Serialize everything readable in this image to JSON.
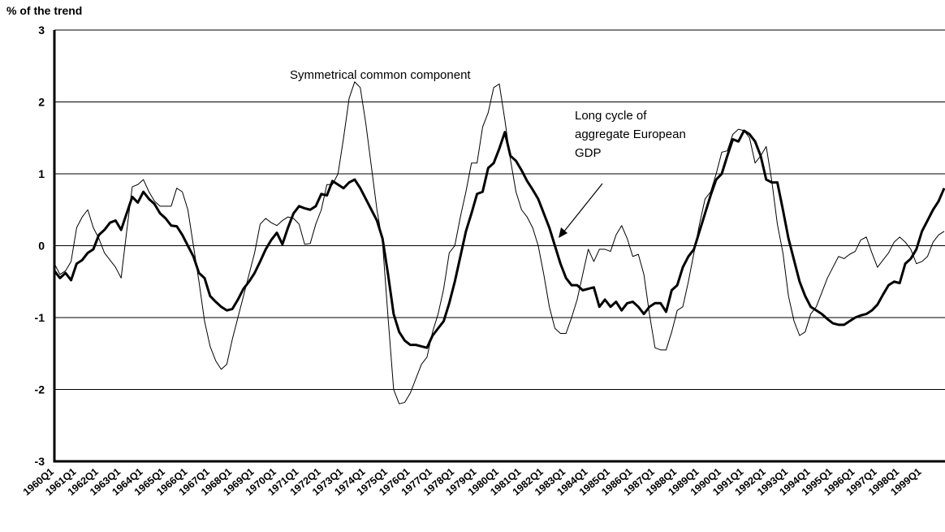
{
  "chart_data": {
    "type": "line",
    "ylabel": "% of the trend",
    "ylim": [
      -3,
      3
    ],
    "yticks": [
      -3,
      -2,
      -1,
      0,
      1,
      2,
      3
    ],
    "grid": true,
    "categories": [
      "1960Q1",
      null,
      null,
      null,
      "1961Q1",
      null,
      null,
      null,
      "1962Q1",
      null,
      null,
      null,
      "1963Q1",
      null,
      null,
      null,
      "1964Q1",
      null,
      null,
      null,
      "1965Q1",
      null,
      null,
      null,
      "1966Q1",
      null,
      null,
      null,
      "1967Q1",
      null,
      null,
      null,
      "1968Q1",
      null,
      null,
      null,
      "1969Q1",
      null,
      null,
      null,
      "1970Q1",
      null,
      null,
      null,
      "1971Q1",
      null,
      null,
      null,
      "1972Q1",
      null,
      null,
      null,
      "1973Q1",
      null,
      null,
      null,
      "1974Q1",
      null,
      null,
      null,
      "1975Q1",
      null,
      null,
      null,
      "1976Q1",
      null,
      null,
      null,
      "1977Q1",
      null,
      null,
      null,
      "1978Q1",
      null,
      null,
      null,
      "1979Q1",
      null,
      null,
      null,
      "1980Q1",
      null,
      null,
      null,
      "1981Q1",
      null,
      null,
      null,
      "1982Q1",
      null,
      null,
      null,
      "1983Q1",
      null,
      null,
      null,
      "1984Q1",
      null,
      null,
      null,
      "1985Q1",
      null,
      null,
      null,
      "1986Q1",
      null,
      null,
      null,
      "1987Q1",
      null,
      null,
      null,
      "1988Q1",
      null,
      null,
      null,
      "1989Q1",
      null,
      null,
      null,
      "1990Q1",
      null,
      null,
      null,
      "1991Q1",
      null,
      null,
      null,
      "1992Q1",
      null,
      null,
      null,
      "1993Q1",
      null,
      null,
      null,
      "1994Q1",
      null,
      null,
      null,
      "1995Q1",
      null,
      null,
      null,
      "1996Q1",
      null,
      null,
      null,
      "1997Q1",
      null,
      null,
      null,
      "1998Q1",
      null,
      null,
      null,
      "1999Q1",
      null,
      null,
      null,
      null
    ],
    "series": [
      {
        "name": "Symmetrical common component",
        "color": "#000000",
        "linewidth": 1,
        "values": [
          -0.25,
          -0.4,
          -0.35,
          -0.22,
          0.25,
          0.4,
          0.5,
          0.25,
          0.1,
          -0.1,
          -0.2,
          -0.3,
          -0.45,
          0.2,
          0.82,
          0.85,
          0.92,
          0.75,
          0.62,
          0.55,
          0.55,
          0.55,
          0.8,
          0.75,
          0.5,
          0.0,
          -0.5,
          -1.05,
          -1.4,
          -1.6,
          -1.72,
          -1.65,
          -1.3,
          -1.0,
          -0.7,
          -0.4,
          -0.1,
          0.3,
          0.38,
          0.32,
          0.28,
          0.35,
          0.4,
          0.38,
          0.3,
          0.02,
          0.03,
          0.3,
          0.5,
          0.85,
          0.85,
          1.0,
          1.5,
          2.05,
          2.28,
          2.2,
          1.7,
          1.1,
          0.5,
          0.05,
          -1.0,
          -2.0,
          -2.2,
          -2.18,
          -2.05,
          -1.85,
          -1.65,
          -1.55,
          -1.2,
          -0.95,
          -0.6,
          -0.1,
          0.0,
          0.4,
          0.75,
          1.15,
          1.15,
          1.65,
          1.85,
          2.2,
          2.25,
          1.75,
          1.2,
          0.75,
          0.5,
          0.4,
          0.25,
          0.0,
          -0.4,
          -0.85,
          -1.15,
          -1.22,
          -1.22,
          -1.0,
          -0.75,
          -0.4,
          -0.05,
          -0.22,
          -0.05,
          -0.05,
          -0.08,
          0.15,
          0.28,
          0.1,
          -0.15,
          -0.12,
          -0.4,
          -0.95,
          -1.42,
          -1.45,
          -1.45,
          -1.2,
          -0.9,
          -0.85,
          -0.5,
          -0.1,
          0.3,
          0.65,
          0.75,
          1.0,
          1.3,
          1.32,
          1.55,
          1.62,
          1.6,
          1.5,
          1.15,
          1.25,
          1.38,
          0.9,
          0.3,
          -0.1,
          -0.7,
          -1.05,
          -1.25,
          -1.2,
          -0.95,
          -0.85,
          -0.65,
          -0.45,
          -0.3,
          -0.15,
          -0.18,
          -0.12,
          -0.08,
          0.08,
          0.12,
          -0.1,
          -0.3,
          -0.2,
          -0.1,
          0.05,
          0.12,
          0.05,
          -0.05,
          -0.25,
          -0.22,
          -0.15,
          0.05,
          0.15,
          0.2
        ]
      },
      {
        "name": [
          "Long cycle of",
          "aggregate European",
          "GDP"
        ],
        "color": "#000000",
        "linewidth": 3,
        "values": [
          -0.35,
          -0.45,
          -0.38,
          -0.48,
          -0.25,
          -0.2,
          -0.1,
          -0.05,
          0.15,
          0.22,
          0.32,
          0.35,
          0.22,
          0.45,
          0.68,
          0.6,
          0.75,
          0.65,
          0.58,
          0.45,
          0.38,
          0.28,
          0.27,
          0.15,
          0.0,
          -0.15,
          -0.38,
          -0.45,
          -0.7,
          -0.78,
          -0.85,
          -0.9,
          -0.88,
          -0.75,
          -0.6,
          -0.5,
          -0.38,
          -0.22,
          -0.05,
          0.08,
          0.18,
          0.02,
          0.25,
          0.45,
          0.55,
          0.52,
          0.5,
          0.55,
          0.72,
          0.7,
          0.9,
          0.85,
          0.8,
          0.88,
          0.92,
          0.8,
          0.65,
          0.5,
          0.35,
          0.1,
          -0.4,
          -0.95,
          -1.2,
          -1.32,
          -1.38,
          -1.38,
          -1.4,
          -1.42,
          -1.25,
          -1.15,
          -1.05,
          -0.8,
          -0.5,
          -0.15,
          0.2,
          0.45,
          0.72,
          0.75,
          1.08,
          1.15,
          1.35,
          1.58,
          1.25,
          1.18,
          1.05,
          0.9,
          0.78,
          0.65,
          0.45,
          0.25,
          0.0,
          -0.25,
          -0.45,
          -0.55,
          -0.55,
          -0.62,
          -0.6,
          -0.58,
          -0.85,
          -0.75,
          -0.85,
          -0.78,
          -0.9,
          -0.8,
          -0.78,
          -0.85,
          -0.95,
          -0.85,
          -0.8,
          -0.8,
          -0.92,
          -0.62,
          -0.55,
          -0.3,
          -0.15,
          -0.05,
          0.2,
          0.45,
          0.7,
          0.92,
          1.0,
          1.25,
          1.48,
          1.45,
          1.6,
          1.55,
          1.45,
          1.25,
          0.92,
          0.88,
          0.88,
          0.5,
          0.1,
          -0.2,
          -0.5,
          -0.7,
          -0.85,
          -0.9,
          -0.95,
          -1.02,
          -1.08,
          -1.1,
          -1.1,
          -1.05,
          -1.0,
          -0.97,
          -0.95,
          -0.9,
          -0.82,
          -0.68,
          -0.55,
          -0.5,
          -0.52,
          -0.25,
          -0.18,
          -0.05,
          0.2,
          0.35,
          0.5,
          0.62,
          0.8
        ]
      }
    ]
  }
}
